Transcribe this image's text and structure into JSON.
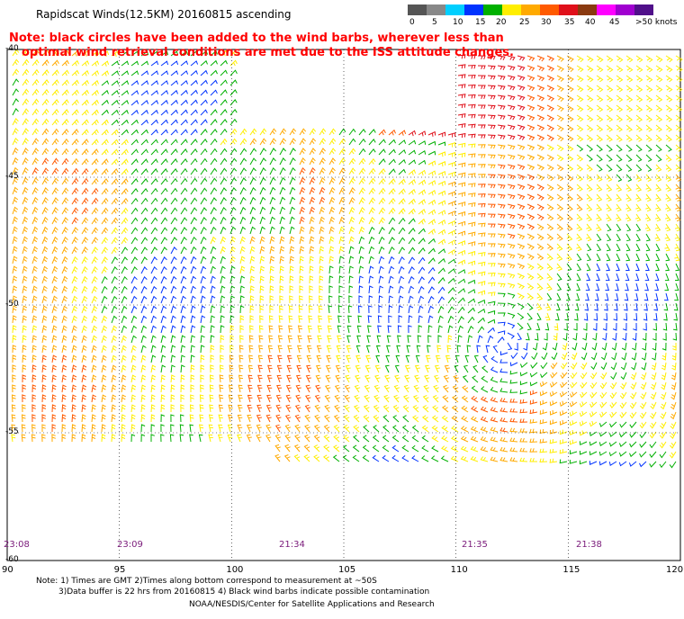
{
  "title": "Rapidscat Winds(12.5KM) 20160815 ascending",
  "note": {
    "line1": "Note: black circles have been added to the wind barbs, wherever less than",
    "line2": "optimal wind retrieval conditions are met due to the ISS attitude changes."
  },
  "colorbar": {
    "labels": [
      "0",
      "5",
      "10",
      "15",
      "20",
      "25",
      "30",
      "35",
      "40",
      "45",
      ">50 knots"
    ],
    "colors": [
      "#555555",
      "#888888",
      "#00cfff",
      "#0033ff",
      "#00b000",
      "#ffee00",
      "#ffaa00",
      "#ff5a00",
      "#e0101a",
      "#8a3a10",
      "#ff00ff",
      "#a000d0",
      "#50108a"
    ]
  },
  "map": {
    "lon_ticks": [
      "90",
      "95",
      "100",
      "105",
      "110",
      "115",
      "120"
    ],
    "lat_ticks": [
      "-40",
      "-45",
      "-50",
      "-55",
      "-60"
    ],
    "lon_range": [
      90,
      120
    ],
    "lat_range": [
      -60,
      -40
    ]
  },
  "times": [
    "23:08",
    "23:09",
    "21:34",
    "21:35",
    "21:38"
  ],
  "footer": {
    "line1": "Note: 1) Times are GMT 2)Times along bottom correspond to measurement at ~50S",
    "line2": "3)Data buffer is 22 hrs from 20160815 4) Black wind barbs indicate possible contamination",
    "line3": "NOAA/NESDIS/Center for Satellite Applications and Research"
  }
}
